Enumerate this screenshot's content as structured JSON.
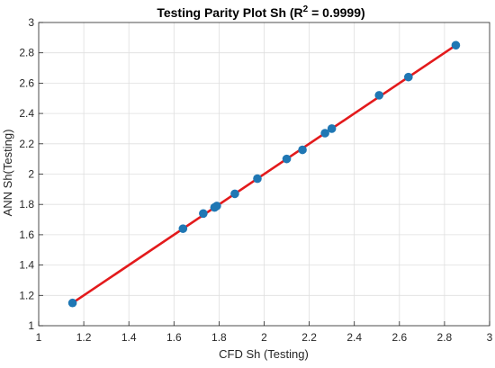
{
  "chart_data": {
    "type": "scatter",
    "title": "Testing Parity Plot Sh (R",
    "title_sup": "2",
    "title_tail": " = 0.9999)",
    "xlabel": "CFD Sh (Testing)",
    "ylabel": "ANN Sh(Testing)",
    "xlim": [
      1,
      3
    ],
    "ylim": [
      1,
      3
    ],
    "x_ticks": [
      "1",
      "1.2",
      "1.4",
      "1.6",
      "1.8",
      "2",
      "2.2",
      "2.4",
      "2.6",
      "2.8",
      "3"
    ],
    "y_ticks": [
      "1",
      "1.2",
      "1.4",
      "1.6",
      "1.8",
      "2",
      "2.2",
      "2.4",
      "2.6",
      "2.8",
      "3"
    ],
    "grid": true,
    "points": [
      {
        "x": 1.15,
        "y": 1.15
      },
      {
        "x": 1.64,
        "y": 1.64
      },
      {
        "x": 1.73,
        "y": 1.74
      },
      {
        "x": 1.78,
        "y": 1.78
      },
      {
        "x": 1.79,
        "y": 1.79
      },
      {
        "x": 1.87,
        "y": 1.87
      },
      {
        "x": 1.97,
        "y": 1.97
      },
      {
        "x": 2.1,
        "y": 2.1
      },
      {
        "x": 2.17,
        "y": 2.16
      },
      {
        "x": 2.27,
        "y": 2.27
      },
      {
        "x": 2.3,
        "y": 2.3
      },
      {
        "x": 2.51,
        "y": 2.52
      },
      {
        "x": 2.64,
        "y": 2.64
      },
      {
        "x": 2.85,
        "y": 2.85
      }
    ],
    "fit_line": {
      "x": [
        1.15,
        2.85
      ],
      "y": [
        1.15,
        2.85
      ]
    },
    "colors": {
      "points": "#1f77b4",
      "fit_line": "#e31a1c",
      "grid": "#dfdfdf",
      "axes": "#262626"
    }
  }
}
